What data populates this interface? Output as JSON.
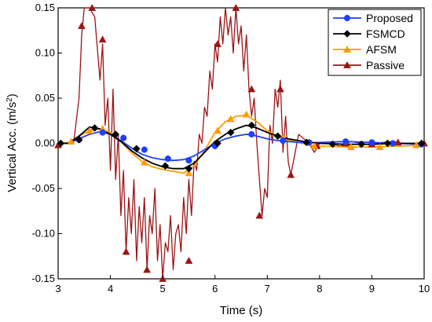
{
  "chart_data": {
    "type": "line",
    "title": "",
    "xlabel": "Time (s)",
    "ylabel_main": "Vertical Acc. (m/s",
    "ylabel_sup": "2",
    "ylabel_close": ")",
    "xlim": [
      3,
      10
    ],
    "ylim": [
      -0.15,
      0.15
    ],
    "xticks": [
      3,
      4,
      5,
      6,
      7,
      8,
      9,
      10
    ],
    "xtick_labels": [
      "3",
      "4",
      "5",
      "6",
      "7",
      "8",
      "9",
      "10"
    ],
    "yticks": [
      -0.15,
      -0.1,
      -0.05,
      0.0,
      0.05,
      0.1,
      0.15
    ],
    "ytick_labels": [
      "-0.15",
      "-0.10",
      "-0.05",
      "0.00",
      "0.05",
      "0.10",
      "0.15"
    ],
    "grid": false,
    "legend_position": "top-right",
    "series": [
      {
        "name": "Proposed",
        "color": "#1f3fff",
        "marker": "circle",
        "x": [
          3.0,
          3.2,
          3.4,
          3.6,
          3.8,
          4.0,
          4.2,
          4.4,
          4.6,
          4.8,
          5.0,
          5.2,
          5.4,
          5.6,
          5.8,
          6.0,
          6.2,
          6.4,
          6.6,
          6.8,
          7.0,
          7.2,
          7.4,
          7.6,
          7.8,
          8.0,
          8.5,
          9.0,
          9.5,
          10.0
        ],
        "y": [
          0.0,
          0.0,
          0.005,
          0.01,
          0.013,
          0.01,
          0.003,
          -0.005,
          -0.012,
          -0.016,
          -0.018,
          -0.019,
          -0.018,
          -0.014,
          -0.007,
          0.0,
          0.005,
          0.008,
          0.01,
          0.008,
          0.005,
          0.003,
          0.002,
          0.001,
          0.001,
          0.001,
          0.002,
          0.001,
          0.0,
          -0.001
        ],
        "marker_x": [
          3.4,
          3.85,
          4.25,
          4.65,
          5.1,
          5.5,
          6.0,
          6.7,
          7.3,
          7.8,
          8.5,
          9.0,
          9.4,
          9.95
        ],
        "marker_y": [
          0.004,
          0.012,
          0.006,
          -0.007,
          -0.017,
          -0.019,
          -0.003,
          0.01,
          0.003,
          0.001,
          0.002,
          0.001,
          0.0,
          -0.001
        ]
      },
      {
        "name": "FSMCD",
        "color": "#000000",
        "marker": "diamond",
        "x": [
          3.0,
          3.2,
          3.4,
          3.6,
          3.8,
          4.0,
          4.2,
          4.4,
          4.6,
          4.8,
          5.0,
          5.2,
          5.4,
          5.6,
          5.8,
          6.0,
          6.2,
          6.4,
          6.6,
          6.8,
          7.0,
          7.2,
          7.4,
          7.6,
          7.8,
          8.0,
          8.5,
          9.0,
          9.5,
          10.0
        ],
        "y": [
          0.0,
          0.0,
          0.008,
          0.018,
          0.016,
          0.01,
          0.002,
          -0.008,
          -0.016,
          -0.022,
          -0.026,
          -0.028,
          -0.028,
          -0.022,
          -0.01,
          0.002,
          0.01,
          0.016,
          0.02,
          0.017,
          0.012,
          0.008,
          0.005,
          0.003,
          0.001,
          0.0,
          -0.001,
          -0.001,
          0.0,
          0.0
        ],
        "marker_x": [
          3.05,
          3.4,
          3.7,
          4.1,
          4.5,
          5.05,
          5.5,
          6.05,
          6.3,
          6.7,
          7.2,
          7.75,
          8.25,
          8.8,
          9.3,
          9.95
        ],
        "marker_y": [
          0.0,
          0.004,
          0.017,
          0.01,
          -0.006,
          -0.025,
          -0.028,
          0.0,
          0.012,
          0.02,
          0.008,
          0.001,
          -0.001,
          -0.001,
          0.0,
          0.0
        ]
      },
      {
        "name": "AFSM",
        "color": "#ff9a00",
        "marker": "triangle",
        "x": [
          3.0,
          3.2,
          3.4,
          3.6,
          3.8,
          4.0,
          4.2,
          4.4,
          4.6,
          4.8,
          5.0,
          5.2,
          5.4,
          5.6,
          5.8,
          6.0,
          6.2,
          6.4,
          6.6,
          6.8,
          7.0,
          7.2,
          7.4,
          7.6,
          7.8,
          8.0,
          8.5,
          9.0,
          9.5,
          10.0
        ],
        "y": [
          0.0,
          0.001,
          0.008,
          0.014,
          0.016,
          0.012,
          0.002,
          -0.01,
          -0.02,
          -0.026,
          -0.029,
          -0.031,
          -0.033,
          -0.025,
          -0.008,
          0.012,
          0.024,
          0.03,
          0.031,
          0.024,
          0.014,
          0.008,
          0.004,
          0.001,
          -0.002,
          -0.003,
          -0.004,
          -0.004,
          -0.003,
          -0.002
        ],
        "marker_x": [
          3.25,
          3.6,
          3.85,
          4.65,
          5.5,
          6.05,
          6.3,
          6.6,
          7.3,
          7.9,
          8.6,
          9.15,
          9.85
        ],
        "marker_y": [
          0.002,
          0.014,
          0.016,
          -0.021,
          -0.033,
          0.014,
          0.027,
          0.032,
          0.006,
          -0.003,
          -0.004,
          -0.004,
          -0.002
        ],
        "marker_color": "#ff9a00"
      },
      {
        "name": "Passive",
        "color": "#9c1414",
        "marker": "triangle",
        "x": [
          3.0,
          3.1,
          3.2,
          3.3,
          3.4,
          3.45,
          3.5,
          3.6,
          3.7,
          3.8,
          3.85,
          3.9,
          3.95,
          4.0,
          4.05,
          4.1,
          4.15,
          4.2,
          4.25,
          4.3,
          4.35,
          4.4,
          4.45,
          4.5,
          4.55,
          4.6,
          4.65,
          4.7,
          4.75,
          4.8,
          4.85,
          4.9,
          4.95,
          5.0,
          5.05,
          5.1,
          5.15,
          5.2,
          5.25,
          5.3,
          5.35,
          5.4,
          5.45,
          5.5,
          5.55,
          5.6,
          5.65,
          5.7,
          5.75,
          5.8,
          5.85,
          5.9,
          5.95,
          6.0,
          6.05,
          6.1,
          6.15,
          6.2,
          6.25,
          6.3,
          6.35,
          6.4,
          6.45,
          6.5,
          6.55,
          6.6,
          6.65,
          6.7,
          6.75,
          6.8,
          6.85,
          6.9,
          6.95,
          7.0,
          7.05,
          7.1,
          7.15,
          7.2,
          7.25,
          7.3,
          7.35,
          7.4,
          7.45,
          7.5,
          7.6,
          7.7,
          7.8,
          7.9,
          8.0,
          8.2,
          8.4,
          8.6,
          8.8,
          9.0,
          9.2,
          9.4,
          9.6,
          9.8,
          10.0
        ],
        "y": [
          -0.002,
          0.0,
          0.0,
          0.002,
          0.05,
          0.12,
          0.15,
          0.15,
          0.14,
          0.07,
          0.11,
          0.02,
          0.05,
          -0.03,
          0.06,
          -0.04,
          0.01,
          -0.08,
          -0.03,
          -0.12,
          -0.06,
          -0.1,
          -0.04,
          -0.13,
          -0.07,
          -0.11,
          -0.06,
          -0.14,
          -0.08,
          -0.1,
          -0.05,
          -0.13,
          -0.09,
          -0.15,
          -0.11,
          -0.12,
          -0.08,
          -0.14,
          -0.1,
          -0.09,
          -0.12,
          -0.06,
          -0.1,
          -0.04,
          -0.08,
          -0.02,
          -0.03,
          0.01,
          0.0,
          0.04,
          0.03,
          0.08,
          0.06,
          0.11,
          0.09,
          0.14,
          0.11,
          0.15,
          0.12,
          0.14,
          0.1,
          0.15,
          0.11,
          0.13,
          0.08,
          0.12,
          0.06,
          0.03,
          0.05,
          0.0,
          -0.04,
          -0.08,
          -0.05,
          -0.06,
          0.02,
          0.0,
          0.06,
          0.04,
          0.07,
          -0.01,
          0.03,
          -0.02,
          -0.035,
          -0.02,
          0.01,
          0.005,
          0.0,
          -0.01,
          0.0,
          0.0,
          -0.003,
          0.002,
          0.0,
          -0.002,
          0.001,
          0.002,
          0.0,
          -0.001,
          0.0
        ],
        "marker_x": [
          3.0,
          3.45,
          3.65,
          3.85,
          4.3,
          4.7,
          5.0,
          5.5,
          6.05,
          6.4,
          6.7,
          6.85,
          7.25,
          7.45,
          7.95,
          8.5,
          9.0,
          9.5,
          10.0
        ],
        "marker_y": [
          -0.002,
          0.13,
          0.15,
          0.115,
          -0.12,
          -0.14,
          -0.15,
          -0.13,
          0.11,
          0.15,
          0.06,
          -0.08,
          0.06,
          -0.035,
          -0.003,
          0.0,
          -0.001,
          0.001,
          0.0
        ]
      }
    ]
  }
}
